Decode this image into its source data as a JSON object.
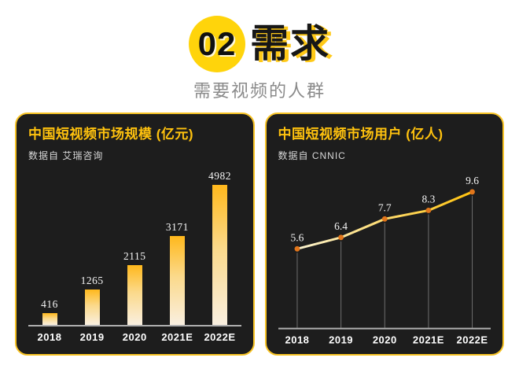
{
  "header": {
    "section_number": "02",
    "title": "需求",
    "subtitle": "需要视频的人群"
  },
  "panels": [
    {
      "title": "中国短视频市场规模 (亿元)",
      "source": "数据自 艾瑞咨询"
    },
    {
      "title": "中国短视频市场用户 (亿人)",
      "source": "数据自 CNNIC"
    }
  ],
  "chart_data": [
    {
      "type": "bar",
      "title": "中国短视频市场规模 (亿元)",
      "source": "艾瑞咨询",
      "categories": [
        "2018",
        "2019",
        "2020",
        "2021E",
        "2022E"
      ],
      "values": [
        416,
        1265,
        2115,
        3171,
        4982
      ],
      "xlabel": "",
      "ylabel": "亿元",
      "ylim": [
        0,
        5000
      ],
      "grid": false,
      "bar_color_top": "#FFB81C",
      "bar_color_bottom": "#F9EFE0",
      "value_label_color": "#f4f4f4"
    },
    {
      "type": "line",
      "title": "中国短视频市场用户 (亿人)",
      "source": "CNNIC",
      "categories": [
        "2018",
        "2019",
        "2020",
        "2021E",
        "2022E"
      ],
      "values": [
        5.6,
        6.4,
        7.7,
        8.3,
        9.6
      ],
      "xlabel": "",
      "ylabel": "亿人",
      "ylim": [
        0,
        10
      ],
      "grid": false,
      "line_gradient": [
        "#FBF3D0",
        "#FFC20E"
      ],
      "marker_color": "#E2761B",
      "drop_line_color": "#6e6e6e",
      "value_label_color": "#f4f4f4"
    }
  ],
  "colors": {
    "accent_yellow": "#FFD40B",
    "panel_bg": "#1d1d1d",
    "panel_border": "#F7C325",
    "panel_title": "#FFC20E",
    "axis": "#b0b0b0"
  }
}
